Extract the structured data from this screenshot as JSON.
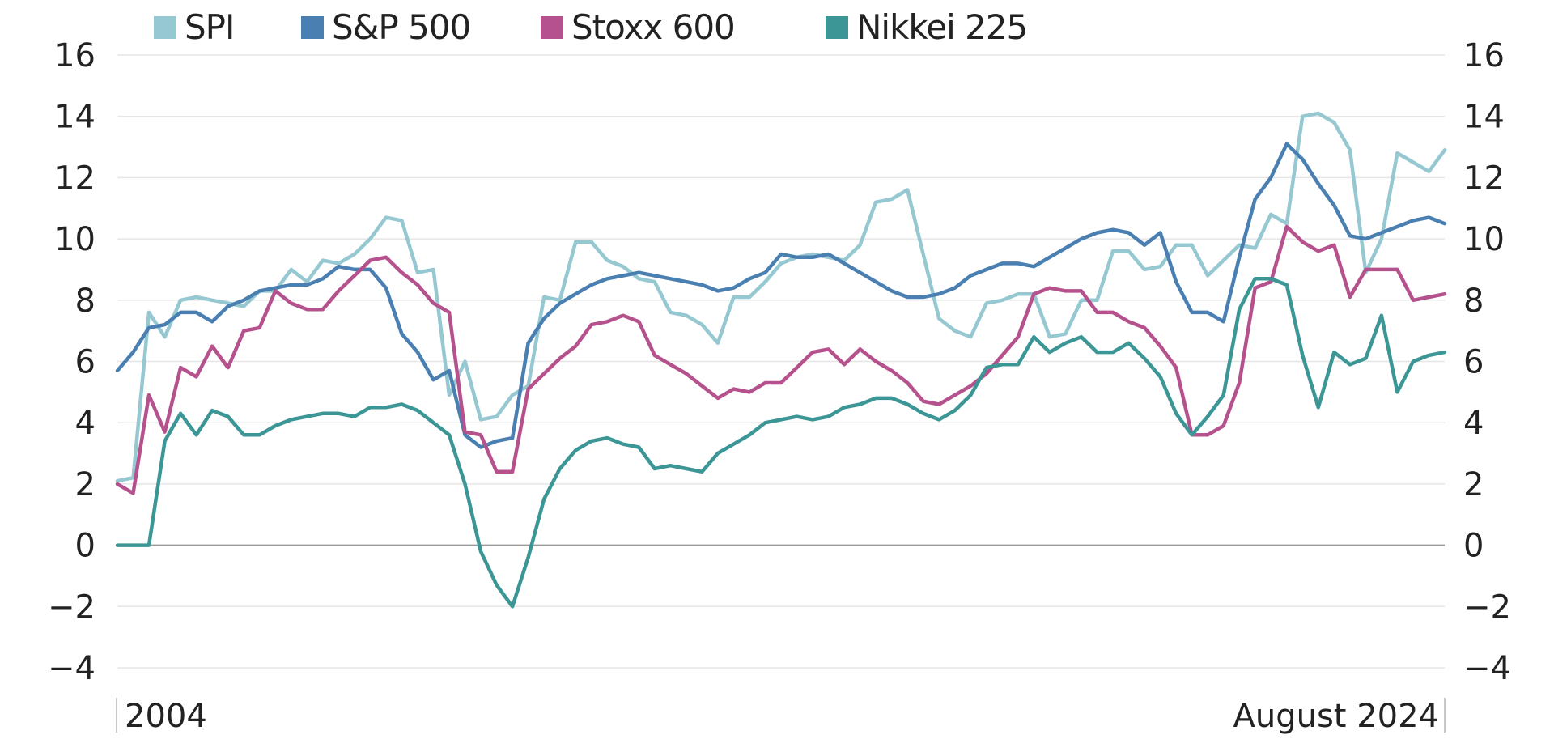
{
  "chart_data": {
    "type": "line",
    "title": "",
    "xlabel": "",
    "ylabel": "",
    "ylim": [
      -4,
      16
    ],
    "yticks": [
      -4,
      -2,
      0,
      2,
      4,
      6,
      8,
      10,
      12,
      14,
      16
    ],
    "ytick_labels": [
      "−4",
      "−2",
      "0",
      "2",
      "4",
      "6",
      "8",
      "10",
      "12",
      "14",
      "16"
    ],
    "x_range": [
      "2004",
      "August 2024"
    ],
    "x_tick_labels": [
      "2004",
      "August 2024"
    ],
    "grid": true,
    "zero_line": true,
    "legend_position": "top",
    "series": [
      {
        "name": "SPI",
        "color": "#96c8d2",
        "values": [
          2.1,
          2.2,
          7.6,
          6.8,
          8.0,
          8.1,
          8.0,
          7.9,
          7.8,
          8.3,
          8.3,
          9.0,
          8.6,
          9.3,
          9.2,
          9.5,
          10.0,
          10.7,
          10.6,
          8.9,
          9.0,
          4.9,
          6.0,
          4.1,
          4.2,
          4.9,
          5.2,
          8.1,
          8.0,
          9.9,
          9.9,
          9.3,
          9.1,
          8.7,
          8.6,
          7.6,
          7.5,
          7.2,
          6.6,
          8.1,
          8.1,
          8.6,
          9.2,
          9.4,
          9.5,
          9.4,
          9.3,
          9.8,
          11.2,
          11.3,
          11.6,
          9.5,
          7.4,
          7.0,
          6.8,
          7.9,
          8.0,
          8.2,
          8.2,
          6.8,
          6.9,
          8.0,
          8.0,
          9.6,
          9.6,
          9.0,
          9.1,
          9.8,
          9.8,
          8.8,
          9.3,
          9.8,
          9.7,
          10.8,
          10.5,
          14.0,
          14.1,
          13.8,
          12.9,
          8.9,
          10.0,
          12.8,
          12.5,
          12.2,
          12.9
        ]
      },
      {
        "name": "S&P 500",
        "color": "#4a7fb2",
        "values": [
          5.7,
          6.3,
          7.1,
          7.2,
          7.6,
          7.6,
          7.3,
          7.8,
          8.0,
          8.3,
          8.4,
          8.5,
          8.5,
          8.7,
          9.1,
          9.0,
          9.0,
          8.4,
          6.9,
          6.3,
          5.4,
          5.7,
          3.6,
          3.2,
          3.4,
          3.5,
          6.6,
          7.4,
          7.9,
          8.2,
          8.5,
          8.7,
          8.8,
          8.9,
          8.8,
          8.7,
          8.6,
          8.5,
          8.3,
          8.4,
          8.7,
          8.9,
          9.5,
          9.4,
          9.4,
          9.5,
          9.2,
          8.9,
          8.6,
          8.3,
          8.1,
          8.1,
          8.2,
          8.4,
          8.8,
          9.0,
          9.2,
          9.2,
          9.1,
          9.4,
          9.7,
          10.0,
          10.2,
          10.3,
          10.2,
          9.8,
          10.2,
          8.6,
          7.6,
          7.6,
          7.3,
          9.4,
          11.3,
          12.0,
          13.1,
          12.6,
          11.8,
          11.1,
          10.1,
          10.0,
          10.2,
          10.4,
          10.6,
          10.7,
          10.5
        ]
      },
      {
        "name": "Stoxx 600",
        "color": "#b5528d",
        "values": [
          2.0,
          1.7,
          4.9,
          3.7,
          5.8,
          5.5,
          6.5,
          5.8,
          7.0,
          7.1,
          8.3,
          7.9,
          7.7,
          7.7,
          8.3,
          8.8,
          9.3,
          9.4,
          8.9,
          8.5,
          7.9,
          7.6,
          3.7,
          3.6,
          2.4,
          2.4,
          5.1,
          5.6,
          6.1,
          6.5,
          7.2,
          7.3,
          7.5,
          7.3,
          6.2,
          5.9,
          5.6,
          5.2,
          4.8,
          5.1,
          5.0,
          5.3,
          5.3,
          5.8,
          6.3,
          6.4,
          5.9,
          6.4,
          6.0,
          5.7,
          5.3,
          4.7,
          4.6,
          4.9,
          5.2,
          5.6,
          6.2,
          6.8,
          8.2,
          8.4,
          8.3,
          8.3,
          7.6,
          7.6,
          7.3,
          7.1,
          6.5,
          5.8,
          3.6,
          3.6,
          3.9,
          5.3,
          8.4,
          8.6,
          10.4,
          9.9,
          9.6,
          9.8,
          8.1,
          9.0,
          9.0,
          9.0,
          8.0,
          8.1,
          8.2
        ]
      },
      {
        "name": "Nikkei 225",
        "color": "#3d9696",
        "values": [
          0.0,
          0.0,
          0.0,
          3.4,
          4.3,
          3.6,
          4.4,
          4.2,
          3.6,
          3.6,
          3.9,
          4.1,
          4.2,
          4.3,
          4.3,
          4.2,
          4.5,
          4.5,
          4.6,
          4.4,
          4.0,
          3.6,
          2.0,
          -0.2,
          -1.3,
          -2.0,
          -0.4,
          1.5,
          2.5,
          3.1,
          3.4,
          3.5,
          3.3,
          3.2,
          2.5,
          2.6,
          2.5,
          2.4,
          3.0,
          3.3,
          3.6,
          4.0,
          4.1,
          4.2,
          4.1,
          4.2,
          4.5,
          4.6,
          4.8,
          4.8,
          4.6,
          4.3,
          4.1,
          4.4,
          4.9,
          5.8,
          5.9,
          5.9,
          6.8,
          6.3,
          6.6,
          6.8,
          6.3,
          6.3,
          6.6,
          6.1,
          5.5,
          4.3,
          3.6,
          4.2,
          4.9,
          7.7,
          8.7,
          8.7,
          8.5,
          6.2,
          4.5,
          6.3,
          5.9,
          6.1,
          7.5,
          5.0,
          6.0,
          6.2,
          6.3
        ]
      }
    ]
  }
}
